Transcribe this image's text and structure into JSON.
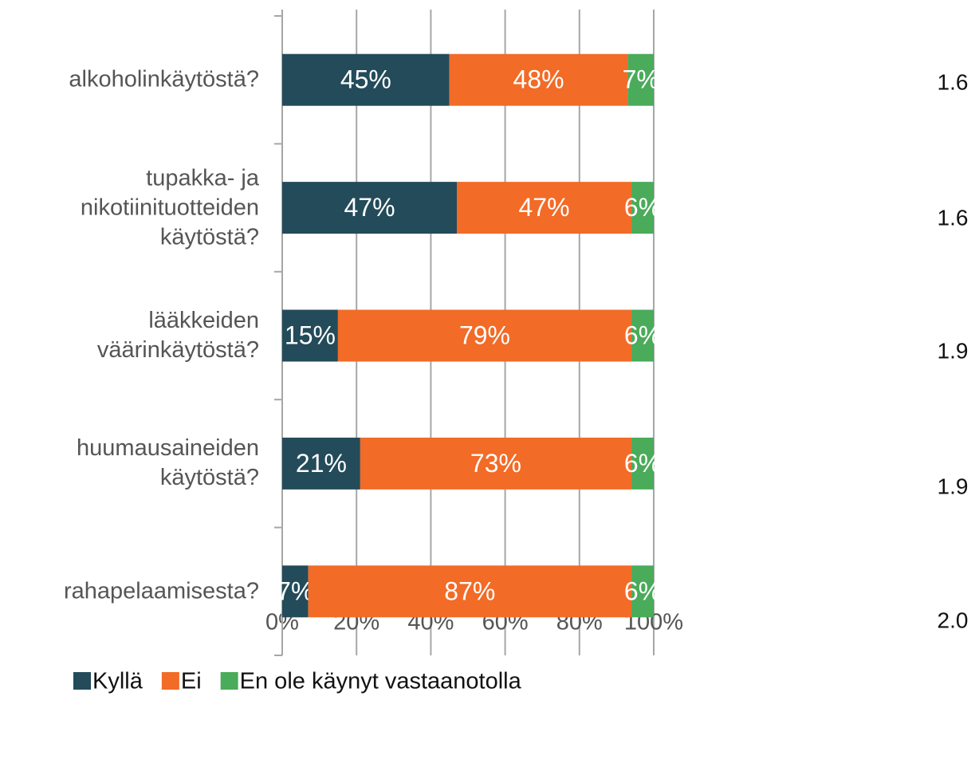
{
  "chart_data": {
    "type": "stacked_bar_horizontal",
    "categories": [
      "alkoholinkäytöstä?",
      "tupakka- ja nikotiinituotteiden käytöstä?",
      "lääkkeiden väärinkäytöstä?",
      "huumausaineiden käytöstä?",
      "rahapelaamisesta?"
    ],
    "series": [
      {
        "name": "Kyllä",
        "color": "#234b5a",
        "values": [
          45,
          47,
          15,
          21,
          7
        ],
        "value_labels": [
          "45%",
          "47%",
          "15%",
          "21%",
          "7%"
        ]
      },
      {
        "name": "Ei",
        "color": "#f26b27",
        "values": [
          48,
          47,
          79,
          73,
          87
        ],
        "value_labels": [
          "48%",
          "47%",
          "79%",
          "73%",
          "87%"
        ]
      },
      {
        "name": "En ole käynyt vastaanotolla",
        "color": "#4aab5a",
        "values": [
          7,
          6,
          6,
          6,
          6
        ],
        "value_labels": [
          "7%",
          "6%",
          "6%",
          "6%",
          "6%"
        ]
      }
    ],
    "xlim": [
      0,
      100
    ],
    "xticks": [
      {
        "value": 0,
        "label": "0%"
      },
      {
        "value": 20,
        "label": "20%"
      },
      {
        "value": 40,
        "label": "40%"
      },
      {
        "value": 60,
        "label": "60%"
      },
      {
        "value": 80,
        "label": "80%"
      },
      {
        "value": 100,
        "label": "100%"
      }
    ],
    "grid": true,
    "legend": "bottom",
    "annotations": [
      "1.6",
      "1.6",
      "1.9",
      "1.9",
      "2.0"
    ]
  }
}
